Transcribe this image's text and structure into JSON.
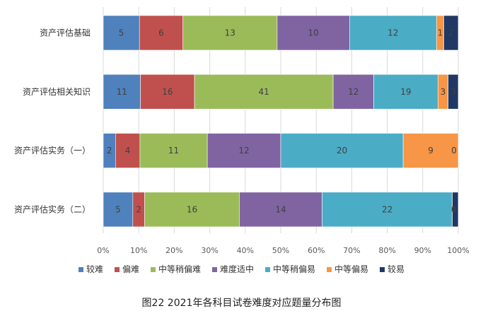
{
  "caption": "图22   2021年各科目试卷难度对应题量分布图",
  "chart_data": {
    "type": "bar",
    "orientation": "horizontal",
    "stacked": "percent",
    "categories": [
      "资产评估基础",
      "资产评估相关知识",
      "资产评估实务（一）",
      "资产评估实务（二）"
    ],
    "series": [
      {
        "name": "较难",
        "color": "#4f81bd",
        "values": [
          5,
          11,
          2,
          5
        ]
      },
      {
        "name": "偏难",
        "color": "#c0504d",
        "values": [
          6,
          16,
          4,
          2
        ]
      },
      {
        "name": "中等稍偏难",
        "color": "#9bbb59",
        "values": [
          13,
          41,
          11,
          16
        ]
      },
      {
        "name": "难度适中",
        "color": "#8064a2",
        "values": [
          10,
          12,
          12,
          14
        ]
      },
      {
        "name": "中等稍偏易",
        "color": "#4bacc6",
        "values": [
          12,
          19,
          20,
          22
        ]
      },
      {
        "name": "中等偏易",
        "color": "#f79646",
        "values": [
          1,
          3,
          9,
          0
        ]
      },
      {
        "name": "较易",
        "color": "#1f3864",
        "values": [
          2,
          3,
          0,
          1
        ]
      }
    ],
    "x_ticks": [
      "0%",
      "10%",
      "20%",
      "30%",
      "40%",
      "50%",
      "60%",
      "70%",
      "80%",
      "90%",
      "100%"
    ],
    "xlim": [
      0,
      100
    ],
    "grid": "vertical",
    "legend": "bottom"
  }
}
